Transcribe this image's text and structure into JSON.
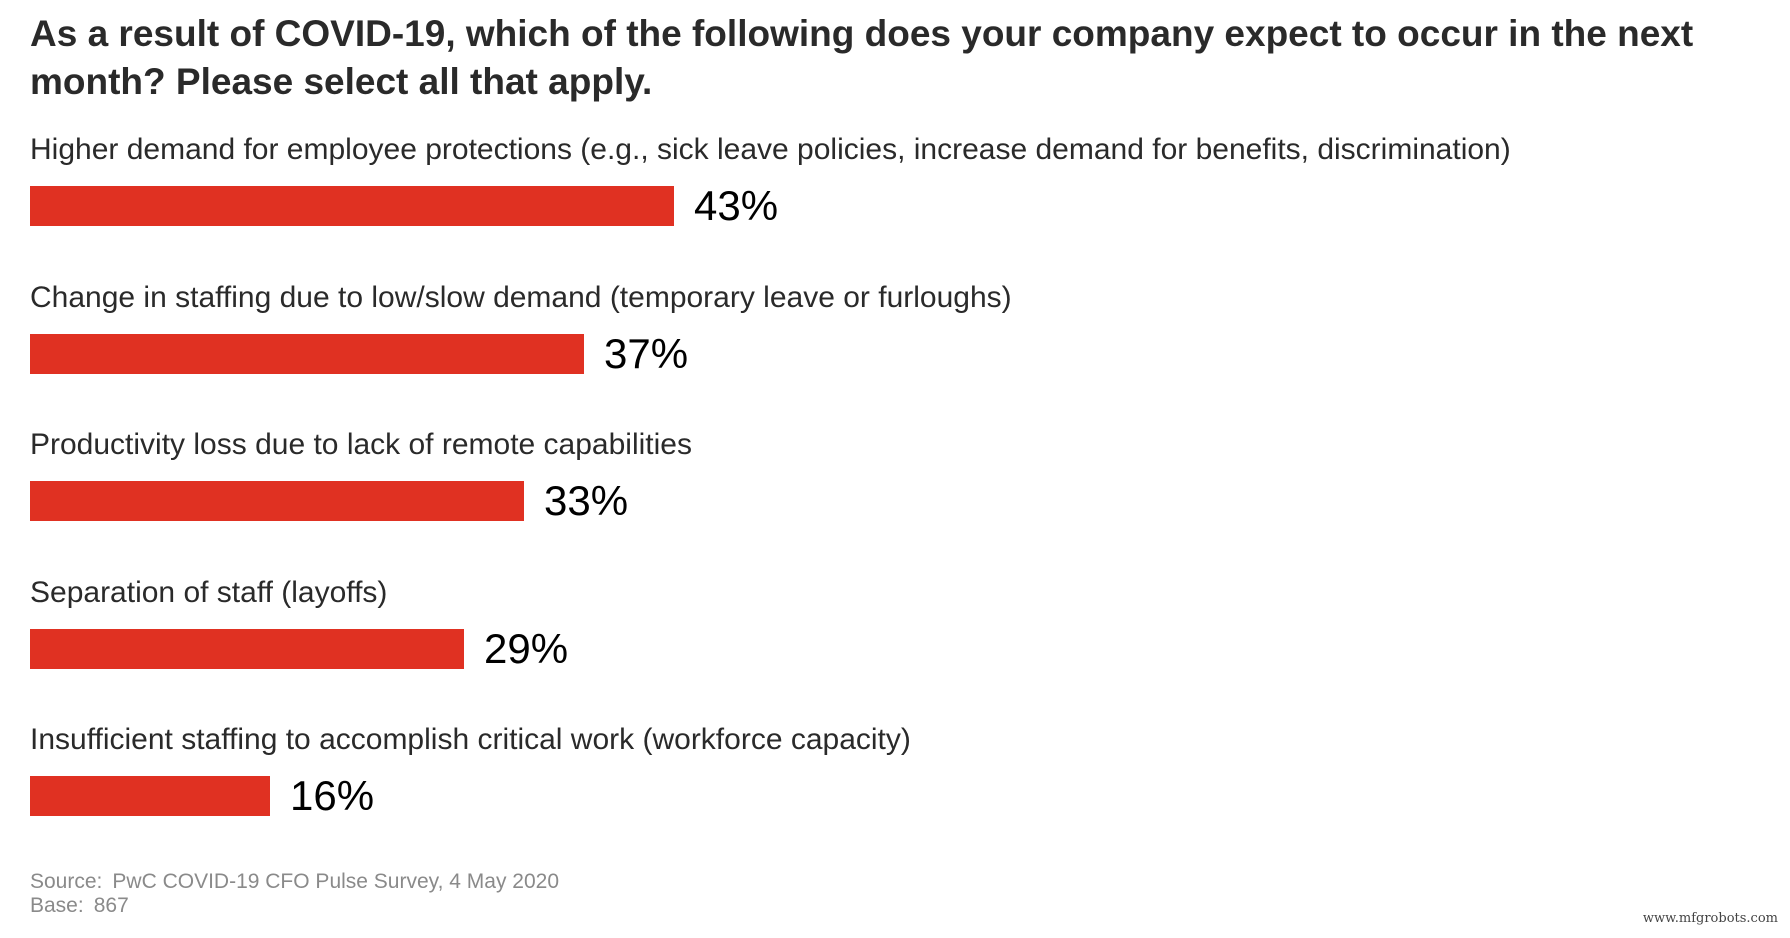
{
  "chart_data": {
    "type": "bar",
    "orientation": "horizontal",
    "title": "As a result of COVID-19, which of the following does your company expect to occur in the next month? Please select all that apply.",
    "categories": [
      "Higher demand for employee protections (e.g., sick leave policies, increase demand for benefits, discrimination)",
      "Change in staffing due to low/slow demand (temporary leave or furloughs)",
      "Productivity loss due to lack of remote capabilities",
      "Separation of staff (layoffs)",
      "Insufficient staffing to accomplish critical work (workforce capacity)"
    ],
    "values": [
      43,
      37,
      33,
      29,
      16
    ],
    "value_labels": [
      "43%",
      "37%",
      "33%",
      "29%",
      "16%"
    ],
    "unit": "%",
    "bar_color": "#e03122",
    "xlim": [
      0,
      100
    ],
    "xlabel": "",
    "ylabel": "",
    "grid": false,
    "legend": "none"
  },
  "source": {
    "label": "Source:",
    "text": "PwC COVID-19 CFO Pulse Survey, 4 May 2020"
  },
  "base": {
    "label": "Base:",
    "text": "867"
  },
  "watermark": "www.mfgrobots.com"
}
